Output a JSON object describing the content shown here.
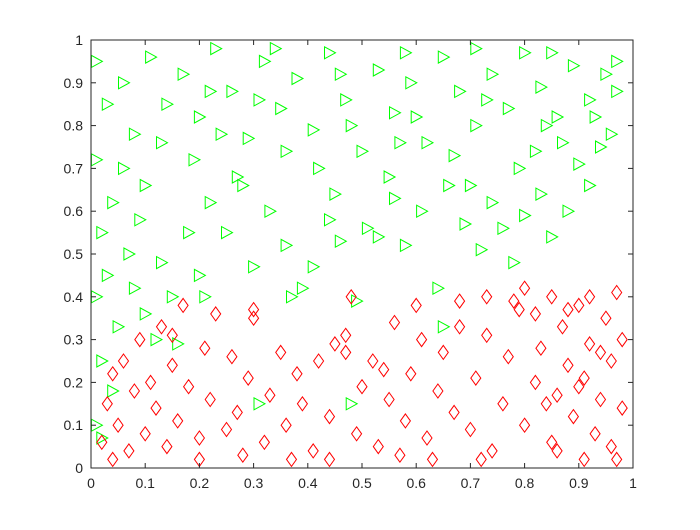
{
  "chart_data": {
    "type": "scatter",
    "title": "",
    "xlabel": "",
    "ylabel": "",
    "xlim": [
      0,
      1
    ],
    "ylim": [
      0,
      1
    ],
    "x_ticks": [
      "0",
      "0.1",
      "0.2",
      "0.3",
      "0.4",
      "0.5",
      "0.6",
      "0.7",
      "0.8",
      "0.9",
      "1"
    ],
    "y_ticks": [
      "0",
      "0.1",
      "0.2",
      "0.3",
      "0.4",
      "0.5",
      "0.6",
      "0.7",
      "0.8",
      "0.9",
      "1"
    ],
    "grid": false,
    "legend": "none",
    "series": [
      {
        "marker": "triangle-right",
        "color": "#00ff00",
        "points": [
          [
            0.01,
            0.95
          ],
          [
            0.01,
            0.72
          ],
          [
            0.02,
            0.55
          ],
          [
            0.01,
            0.4
          ],
          [
            0.02,
            0.25
          ],
          [
            0.01,
            0.1
          ],
          [
            0.02,
            0.07
          ],
          [
            0.03,
            0.85
          ],
          [
            0.04,
            0.62
          ],
          [
            0.03,
            0.45
          ],
          [
            0.05,
            0.33
          ],
          [
            0.04,
            0.18
          ],
          [
            0.06,
            0.7
          ],
          [
            0.07,
            0.5
          ],
          [
            0.08,
            0.42
          ],
          [
            0.09,
            0.58
          ],
          [
            0.1,
            0.36
          ],
          [
            0.12,
            0.3
          ],
          [
            0.13,
            0.48
          ],
          [
            0.15,
            0.4
          ],
          [
            0.16,
            0.29
          ],
          [
            0.18,
            0.55
          ],
          [
            0.2,
            0.45
          ],
          [
            0.21,
            0.4
          ],
          [
            0.22,
            0.62
          ],
          [
            0.25,
            0.55
          ],
          [
            0.27,
            0.68
          ],
          [
            0.3,
            0.47
          ],
          [
            0.31,
            0.15
          ],
          [
            0.33,
            0.6
          ],
          [
            0.36,
            0.52
          ],
          [
            0.37,
            0.4
          ],
          [
            0.39,
            0.42
          ],
          [
            0.41,
            0.47
          ],
          [
            0.44,
            0.58
          ],
          [
            0.46,
            0.53
          ],
          [
            0.48,
            0.15
          ],
          [
            0.49,
            0.39
          ],
          [
            0.51,
            0.56
          ],
          [
            0.53,
            0.54
          ],
          [
            0.56,
            0.63
          ],
          [
            0.58,
            0.52
          ],
          [
            0.61,
            0.6
          ],
          [
            0.64,
            0.42
          ],
          [
            0.65,
            0.33
          ],
          [
            0.66,
            0.66
          ],
          [
            0.69,
            0.57
          ],
          [
            0.72,
            0.51
          ],
          [
            0.74,
            0.62
          ],
          [
            0.76,
            0.56
          ],
          [
            0.78,
            0.48
          ],
          [
            0.8,
            0.59
          ],
          [
            0.83,
            0.64
          ],
          [
            0.85,
            0.54
          ],
          [
            0.88,
            0.6
          ],
          [
            0.9,
            0.71
          ],
          [
            0.92,
            0.66
          ],
          [
            0.94,
            0.75
          ],
          [
            0.96,
            0.78
          ],
          [
            0.97,
            0.88
          ],
          [
            0.97,
            0.95
          ],
          [
            0.95,
            0.92
          ],
          [
            0.92,
            0.86
          ],
          [
            0.89,
            0.94
          ],
          [
            0.86,
            0.82
          ],
          [
            0.83,
            0.89
          ],
          [
            0.8,
            0.97
          ],
          [
            0.77,
            0.84
          ],
          [
            0.74,
            0.92
          ],
          [
            0.71,
            0.8
          ],
          [
            0.68,
            0.88
          ],
          [
            0.65,
            0.96
          ],
          [
            0.62,
            0.76
          ],
          [
            0.59,
            0.9
          ],
          [
            0.56,
            0.83
          ],
          [
            0.53,
            0.93
          ],
          [
            0.5,
            0.74
          ],
          [
            0.47,
            0.86
          ],
          [
            0.44,
            0.97
          ],
          [
            0.41,
            0.79
          ],
          [
            0.38,
            0.91
          ],
          [
            0.35,
            0.84
          ],
          [
            0.32,
            0.95
          ],
          [
            0.29,
            0.77
          ],
          [
            0.26,
            0.88
          ],
          [
            0.23,
            0.98
          ],
          [
            0.2,
            0.82
          ],
          [
            0.17,
            0.92
          ],
          [
            0.14,
            0.85
          ],
          [
            0.11,
            0.96
          ],
          [
            0.08,
            0.78
          ],
          [
            0.06,
            0.9
          ],
          [
            0.19,
            0.72
          ],
          [
            0.28,
            0.66
          ],
          [
            0.42,
            0.7
          ],
          [
            0.55,
            0.68
          ],
          [
            0.67,
            0.73
          ],
          [
            0.79,
            0.7
          ],
          [
            0.87,
            0.76
          ],
          [
            0.24,
            0.78
          ],
          [
            0.36,
            0.74
          ],
          [
            0.48,
            0.8
          ],
          [
            0.6,
            0.82
          ],
          [
            0.73,
            0.86
          ],
          [
            0.84,
            0.8
          ],
          [
            0.13,
            0.76
          ],
          [
            0.31,
            0.86
          ],
          [
            0.45,
            0.64
          ],
          [
            0.57,
            0.76
          ],
          [
            0.7,
            0.66
          ],
          [
            0.82,
            0.74
          ],
          [
            0.93,
            0.82
          ],
          [
            0.1,
            0.66
          ],
          [
            0.22,
            0.88
          ],
          [
            0.34,
            0.98
          ],
          [
            0.46,
            0.92
          ],
          [
            0.58,
            0.97
          ],
          [
            0.71,
            0.98
          ],
          [
            0.85,
            0.97
          ]
        ]
      },
      {
        "marker": "diamond",
        "color": "#ff0000",
        "points": [
          [
            0.02,
            0.06
          ],
          [
            0.03,
            0.15
          ],
          [
            0.04,
            0.22
          ],
          [
            0.05,
            0.1
          ],
          [
            0.06,
            0.25
          ],
          [
            0.07,
            0.04
          ],
          [
            0.08,
            0.18
          ],
          [
            0.09,
            0.3
          ],
          [
            0.1,
            0.08
          ],
          [
            0.11,
            0.2
          ],
          [
            0.12,
            0.14
          ],
          [
            0.13,
            0.33
          ],
          [
            0.14,
            0.05
          ],
          [
            0.15,
            0.24
          ],
          [
            0.16,
            0.11
          ],
          [
            0.17,
            0.38
          ],
          [
            0.18,
            0.19
          ],
          [
            0.2,
            0.07
          ],
          [
            0.21,
            0.28
          ],
          [
            0.22,
            0.16
          ],
          [
            0.23,
            0.36
          ],
          [
            0.25,
            0.09
          ],
          [
            0.26,
            0.26
          ],
          [
            0.27,
            0.13
          ],
          [
            0.29,
            0.21
          ],
          [
            0.3,
            0.35
          ],
          [
            0.32,
            0.06
          ],
          [
            0.33,
            0.17
          ],
          [
            0.35,
            0.27
          ],
          [
            0.36,
            0.1
          ],
          [
            0.38,
            0.22
          ],
          [
            0.39,
            0.15
          ],
          [
            0.41,
            0.04
          ],
          [
            0.42,
            0.25
          ],
          [
            0.44,
            0.12
          ],
          [
            0.45,
            0.29
          ],
          [
            0.47,
            0.31
          ],
          [
            0.48,
            0.4
          ],
          [
            0.49,
            0.08
          ],
          [
            0.5,
            0.19
          ],
          [
            0.52,
            0.25
          ],
          [
            0.53,
            0.05
          ],
          [
            0.55,
            0.16
          ],
          [
            0.56,
            0.34
          ],
          [
            0.58,
            0.11
          ],
          [
            0.59,
            0.22
          ],
          [
            0.61,
            0.3
          ],
          [
            0.62,
            0.07
          ],
          [
            0.64,
            0.18
          ],
          [
            0.65,
            0.27
          ],
          [
            0.67,
            0.13
          ],
          [
            0.68,
            0.33
          ],
          [
            0.7,
            0.09
          ],
          [
            0.71,
            0.21
          ],
          [
            0.73,
            0.31
          ],
          [
            0.74,
            0.04
          ],
          [
            0.76,
            0.15
          ],
          [
            0.77,
            0.26
          ],
          [
            0.79,
            0.37
          ],
          [
            0.8,
            0.1
          ],
          [
            0.82,
            0.2
          ],
          [
            0.83,
            0.28
          ],
          [
            0.85,
            0.06
          ],
          [
            0.86,
            0.17
          ],
          [
            0.87,
            0.33
          ],
          [
            0.88,
            0.24
          ],
          [
            0.89,
            0.12
          ],
          [
            0.9,
            0.38
          ],
          [
            0.91,
            0.21
          ],
          [
            0.92,
            0.29
          ],
          [
            0.93,
            0.08
          ],
          [
            0.94,
            0.16
          ],
          [
            0.95,
            0.35
          ],
          [
            0.96,
            0.25
          ],
          [
            0.97,
            0.41
          ],
          [
            0.98,
            0.14
          ],
          [
            0.98,
            0.3
          ],
          [
            0.96,
            0.05
          ],
          [
            0.94,
            0.27
          ],
          [
            0.92,
            0.4
          ],
          [
            0.9,
            0.19
          ],
          [
            0.88,
            0.37
          ],
          [
            0.86,
            0.04
          ],
          [
            0.84,
            0.15
          ],
          [
            0.82,
            0.36
          ],
          [
            0.6,
            0.38
          ],
          [
            0.73,
            0.4
          ],
          [
            0.8,
            0.42
          ],
          [
            0.85,
            0.4
          ],
          [
            0.78,
            0.39
          ],
          [
            0.68,
            0.39
          ],
          [
            0.3,
            0.37
          ],
          [
            0.15,
            0.31
          ],
          [
            0.47,
            0.27
          ],
          [
            0.54,
            0.23
          ],
          [
            0.37,
            0.02
          ],
          [
            0.63,
            0.02
          ],
          [
            0.2,
            0.02
          ],
          [
            0.04,
            0.02
          ],
          [
            0.44,
            0.02
          ],
          [
            0.72,
            0.02
          ],
          [
            0.91,
            0.02
          ],
          [
            0.97,
            0.02
          ],
          [
            0.28,
            0.03
          ],
          [
            0.57,
            0.03
          ]
        ]
      }
    ]
  }
}
